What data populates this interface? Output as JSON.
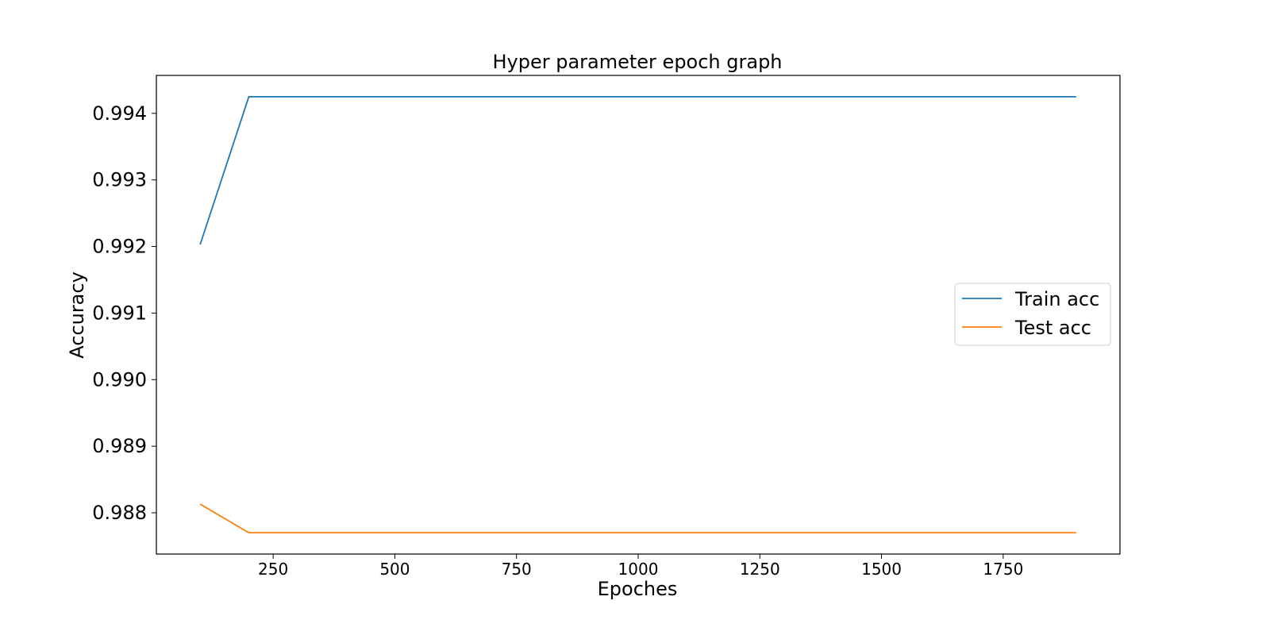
{
  "chart_data": {
    "type": "line",
    "title": "Hyper parameter epoch graph",
    "xlabel": "Epoches",
    "ylabel": "Accuracy",
    "x": [
      100,
      200,
      300,
      400,
      500,
      600,
      700,
      800,
      900,
      1000,
      1100,
      1200,
      1300,
      1400,
      1500,
      1600,
      1700,
      1800,
      1900
    ],
    "series": [
      {
        "name": "Train acc",
        "color": "#1f77b4",
        "values": [
          0.99203,
          0.99425,
          0.99425,
          0.99425,
          0.99425,
          0.99425,
          0.99425,
          0.99425,
          0.99425,
          0.99425,
          0.99425,
          0.99425,
          0.99425,
          0.99425,
          0.99425,
          0.99425,
          0.99425,
          0.99425,
          0.99425
        ]
      },
      {
        "name": "Test acc",
        "color": "#ff7f0e",
        "values": [
          0.98813,
          0.9877,
          0.9877,
          0.9877,
          0.9877,
          0.9877,
          0.9877,
          0.9877,
          0.9877,
          0.9877,
          0.9877,
          0.9877,
          0.9877,
          0.9877,
          0.9877,
          0.9877,
          0.9877,
          0.9877,
          0.9877
        ]
      }
    ],
    "xlim": [
      10,
      1990
    ],
    "ylim": [
      0.98738,
      0.99457
    ],
    "xticks": [
      250,
      500,
      750,
      1000,
      1250,
      1500,
      1750
    ],
    "xtick_labels": [
      "250",
      "500",
      "750",
      "1000",
      "1250",
      "1500",
      "1750"
    ],
    "yticks": [
      0.988,
      0.989,
      0.99,
      0.991,
      0.992,
      0.993,
      0.994
    ],
    "ytick_labels": [
      "0.988",
      "0.989",
      "0.990",
      "0.991",
      "0.992",
      "0.993",
      "0.994"
    ],
    "grid": false,
    "legend_position": "center-right"
  }
}
